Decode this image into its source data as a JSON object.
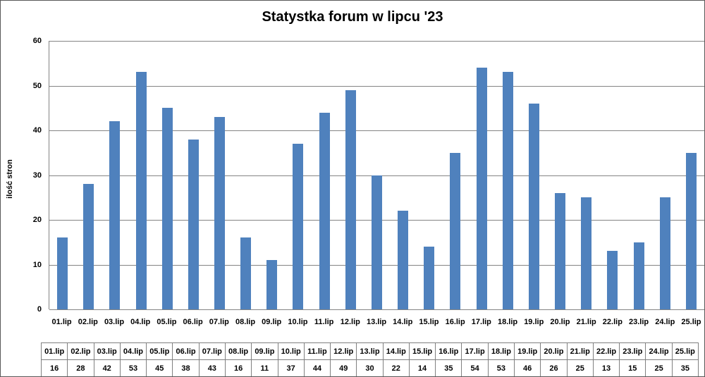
{
  "chart_data": {
    "type": "bar",
    "title": "Statystka forum w lipcu '23",
    "xlabel": "",
    "ylabel": "ilość stron",
    "categories": [
      "01.lip",
      "02.lip",
      "03.lip",
      "04.lip",
      "05.lip",
      "06.lip",
      "07.lip",
      "08.lip",
      "09.lip",
      "10.lip",
      "11.lip",
      "12.lip",
      "13.lip",
      "14.lip",
      "15.lip",
      "16.lip",
      "17.lip",
      "18.lip",
      "19.lip",
      "20.lip",
      "21.lip",
      "22.lip",
      "23.lip",
      "24.lip",
      "25.lip"
    ],
    "values": [
      16,
      28,
      42,
      53,
      45,
      38,
      43,
      16,
      11,
      37,
      44,
      49,
      30,
      22,
      14,
      35,
      54,
      53,
      46,
      26,
      25,
      13,
      15,
      25,
      35
    ],
    "ylim": [
      0,
      60
    ],
    "ytick_step": 10,
    "ytick_labels": [
      "0",
      "10",
      "20",
      "30",
      "40",
      "50",
      "60"
    ],
    "grid": true,
    "legend": "none",
    "bar_color": "#4F81BD",
    "gridline_color": "#848484",
    "data_table_shown": true
  }
}
